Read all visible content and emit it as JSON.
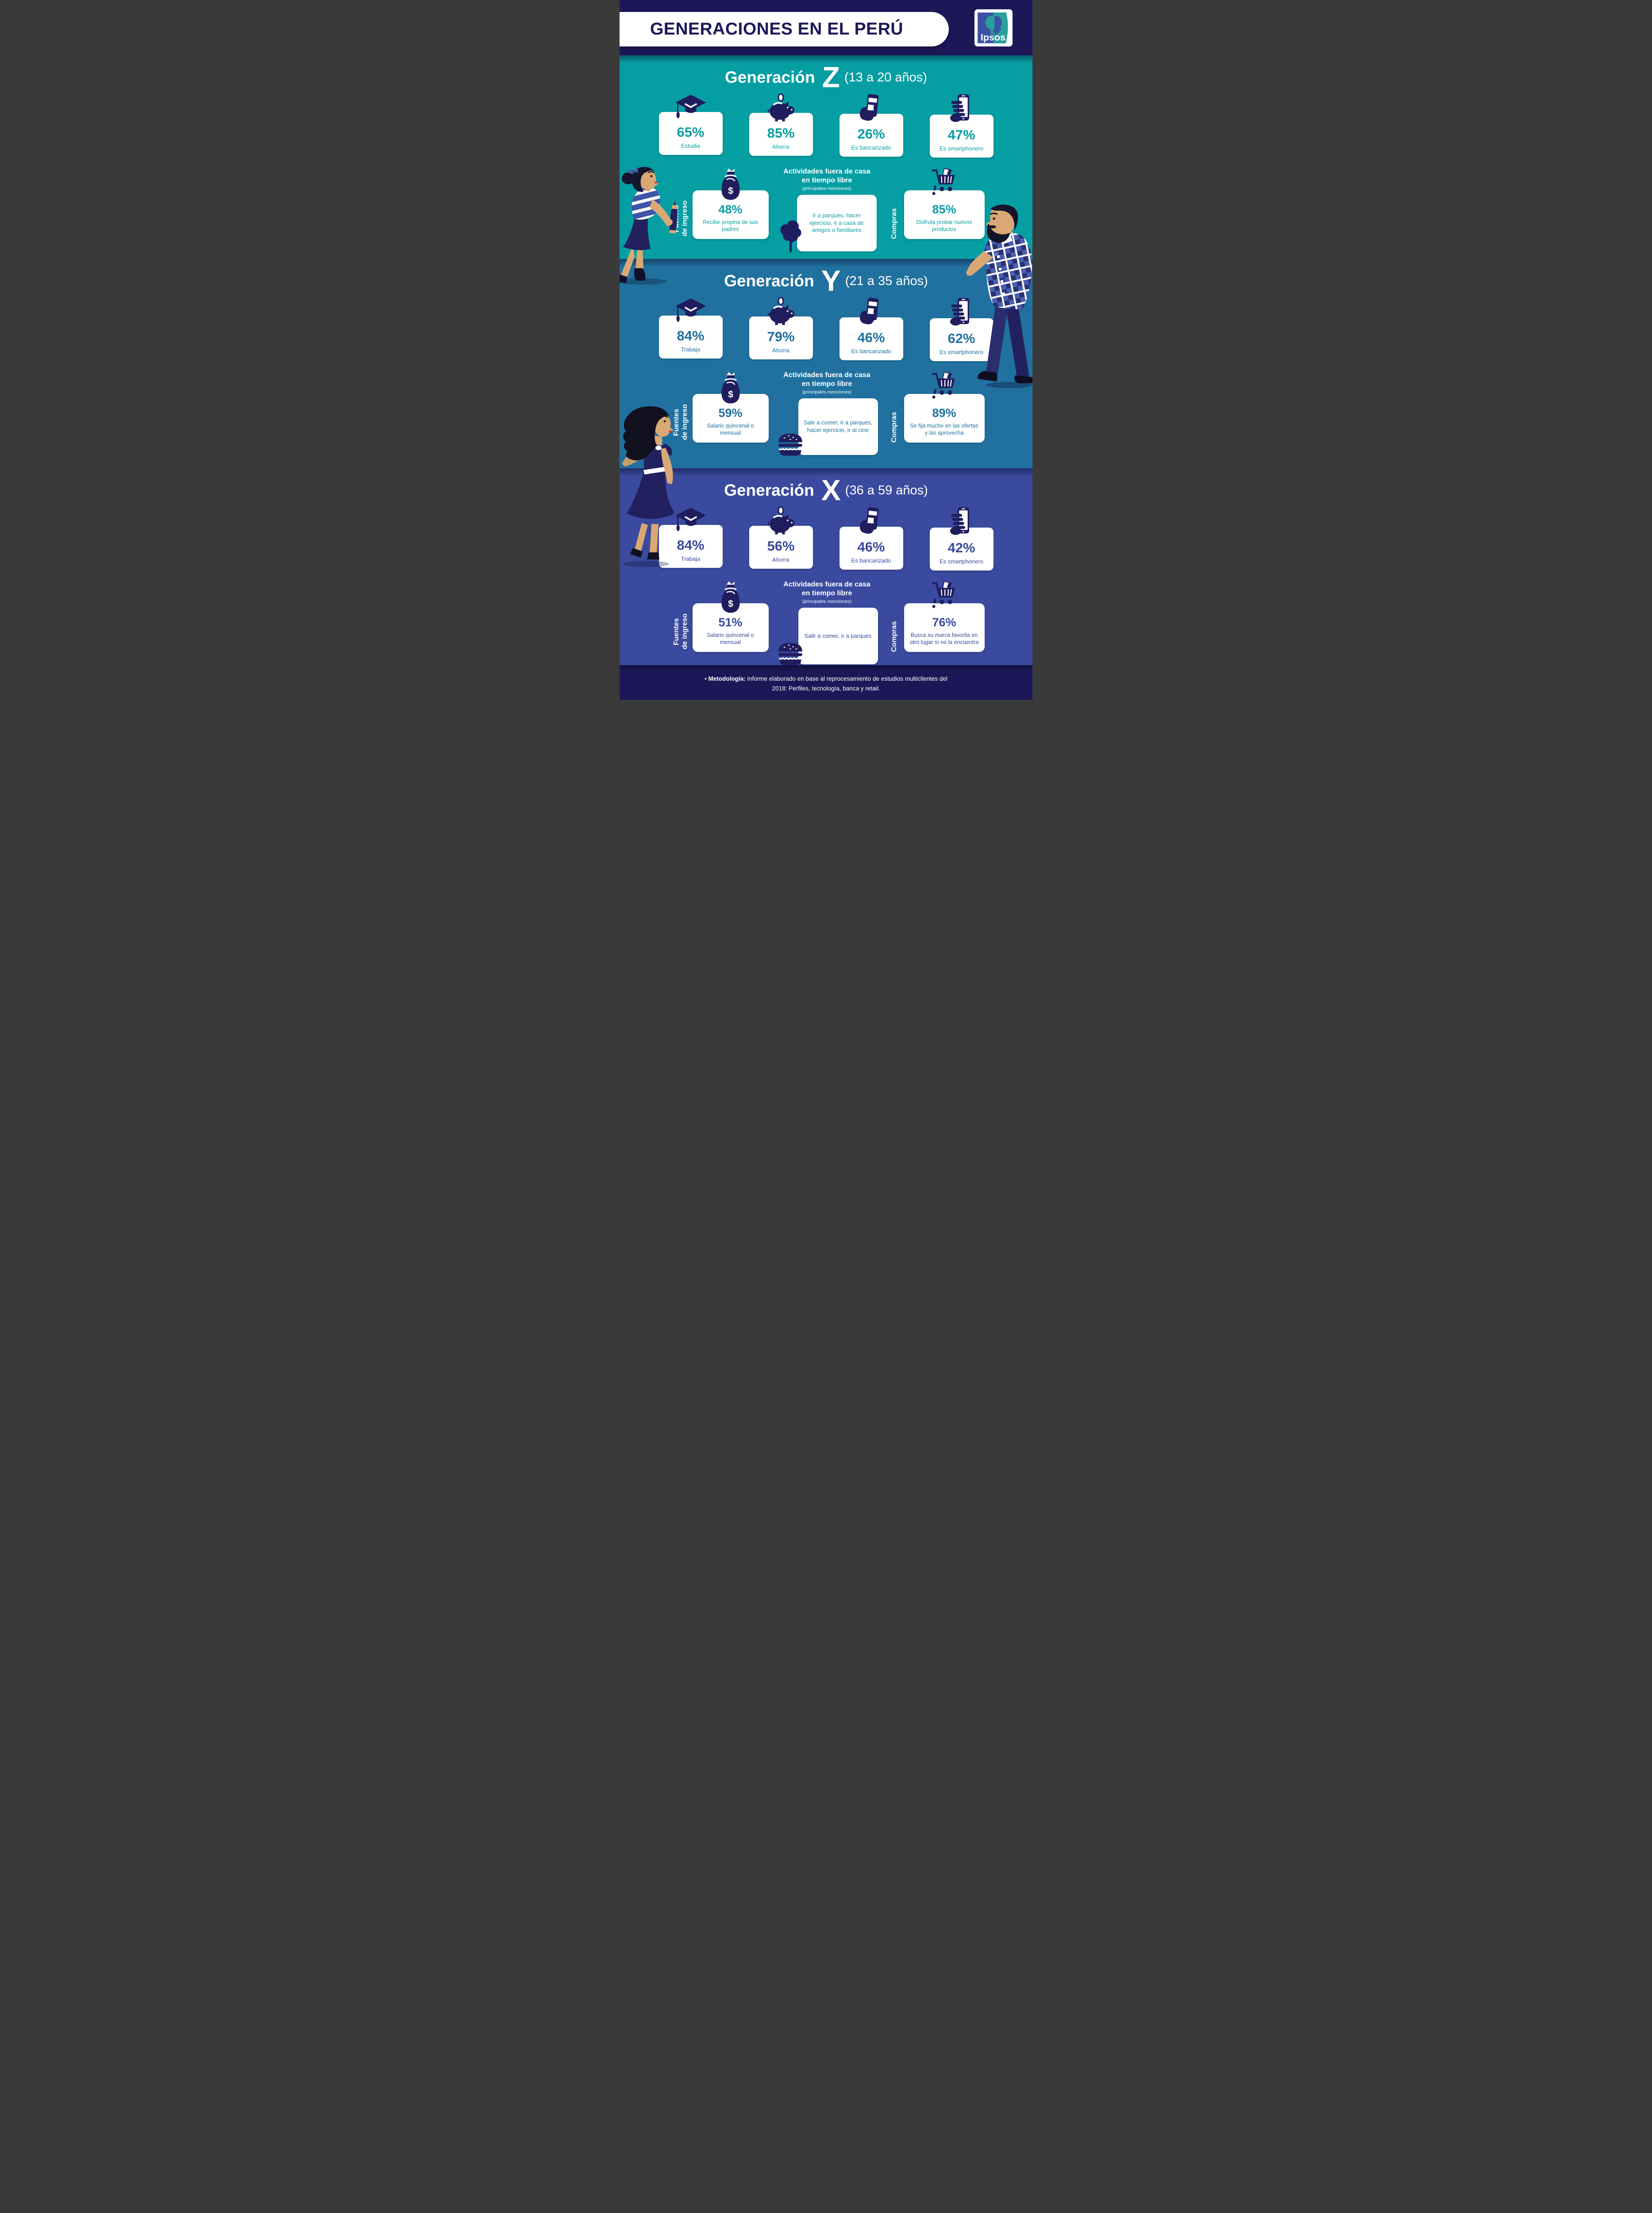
{
  "header": {
    "title": "GENERACIONES EN EL PERÚ",
    "logo_text": "Ipsos"
  },
  "sections": [
    {
      "id": "z",
      "title_prefix": "Generación",
      "letter": "Z",
      "age_range": "(13 a 20 años)",
      "stats": [
        {
          "icon": "graduation-cap",
          "value": "65%",
          "label": "Estudia"
        },
        {
          "icon": "piggy-bank",
          "value": "85%",
          "label": "Ahorra"
        },
        {
          "icon": "credit-card-hand",
          "value": "26%",
          "label": "Es bancarizado"
        },
        {
          "icon": "smartphone-hand",
          "value": "47%",
          "label": "Es smartphonero"
        }
      ],
      "income": {
        "label": "Fuentes de ingreso",
        "icon": "money-bag",
        "value": "48%",
        "text": "Recibe propina de sus padres"
      },
      "activities": {
        "heading": "Actividades fuera de casa en tiempo libre",
        "subheading": "(principales menciones)",
        "icon": "tree",
        "text": "Ir a parques, hacer ejercicio, ir a casa de amigos o familiares"
      },
      "shopping": {
        "label": "Compras",
        "icon": "shopping-cart",
        "value": "85%",
        "text": "Disfruta probar nuevos productos"
      }
    },
    {
      "id": "y",
      "title_prefix": "Generación",
      "letter": "Y",
      "age_range": "(21 a 35 años)",
      "stats": [
        {
          "icon": "graduation-cap",
          "value": "84%",
          "label": "Trabaja"
        },
        {
          "icon": "piggy-bank",
          "value": "79%",
          "label": "Ahorra"
        },
        {
          "icon": "credit-card-hand",
          "value": "46%",
          "label": "Es bancarizado"
        },
        {
          "icon": "smartphone-hand",
          "value": "62%",
          "label": "Es smartphonero"
        }
      ],
      "income": {
        "label": "Fuentes de ingreso",
        "icon": "money-bag",
        "value": "59%",
        "text": "Salario quincenal o mensual"
      },
      "activities": {
        "heading": "Actividades fuera de casa en tiempo libre",
        "subheading": "(principales menciones)",
        "icon": "burger",
        "text": "Salir a comer, ir a parques, hacer ejercicio, ir al cine"
      },
      "shopping": {
        "label": "Compras",
        "icon": "shopping-cart",
        "value": "89%",
        "text": "Se fija mucho en las ofertas y las aprovecha"
      }
    },
    {
      "id": "x",
      "title_prefix": "Generación",
      "letter": "X",
      "age_range": "(36 a 59 años)",
      "stats": [
        {
          "icon": "graduation-cap",
          "value": "84%",
          "label": "Trabaja"
        },
        {
          "icon": "piggy-bank",
          "value": "56%",
          "label": "Ahorra"
        },
        {
          "icon": "credit-card-hand",
          "value": "46%",
          "label": "Es bancarizado"
        },
        {
          "icon": "smartphone-hand",
          "value": "42%",
          "label": "Es smartphonero"
        }
      ],
      "income": {
        "label": "Fuentes de ingreso",
        "icon": "money-bag",
        "value": "51%",
        "text": "Salario quincenal o mensual"
      },
      "activities": {
        "heading": "Actividades fuera de casa en tiempo libre",
        "subheading": "(principales menciones)",
        "icon": "burger",
        "text": "Salir a comer, ir a parques"
      },
      "shopping": {
        "label": "Compras",
        "icon": "shopping-cart",
        "value": "76%",
        "text": "Busca su marca favorita en otro lugar sí no la encuentra"
      }
    }
  ],
  "footer": {
    "bullet": "•",
    "label": "Metodología:",
    "text": "Informe elaborado en base al reprocesamiento de estudios multiclientes del 2018: Perfiles, tecnología, banca y retail."
  },
  "colors": {
    "navy": "#1C1857",
    "teal": "#059EA3",
    "blue": "#20719F",
    "indigo": "#3A4A9E",
    "icon_navy": "#201D5E",
    "white": "#FFFFFF",
    "logo_blue": "#3952A4",
    "logo_teal": "#29A09B"
  },
  "chart_data": {
    "type": "table",
    "title": "Generaciones en el Perú",
    "groups": [
      {
        "generation": "Generación Z",
        "age_range": "13 a 20 años",
        "metrics": {
          "Estudia": 65,
          "Ahorra": 85,
          "Es bancarizado": 26,
          "Es smartphonero": 47,
          "Recibe propina de sus padres (fuentes de ingreso)": 48,
          "Disfruta probar nuevos productos (compras)": 85
        },
        "actividades_tiempo_libre": "Ir a parques, hacer ejercicio, ir a casa de amigos o familiares"
      },
      {
        "generation": "Generación Y",
        "age_range": "21 a 35 años",
        "metrics": {
          "Trabaja": 84,
          "Ahorra": 79,
          "Es bancarizado": 46,
          "Es smartphonero": 62,
          "Salario quincenal o mensual (fuentes de ingreso)": 59,
          "Se fija mucho en las ofertas y las aprovecha (compras)": 89
        },
        "actividades_tiempo_libre": "Salir a comer, ir a parques, hacer ejercicio, ir al cine"
      },
      {
        "generation": "Generación X",
        "age_range": "36 a 59 años",
        "metrics": {
          "Trabaja": 84,
          "Ahorra": 56,
          "Es bancarizado": 46,
          "Es smartphonero": 42,
          "Salario quincenal o mensual (fuentes de ingreso)": 51,
          "Busca su marca favorita en otro lugar sí no la encuentra (compras)": 76
        },
        "actividades_tiempo_libre": "Salir a comer, ir a parques"
      }
    ]
  }
}
